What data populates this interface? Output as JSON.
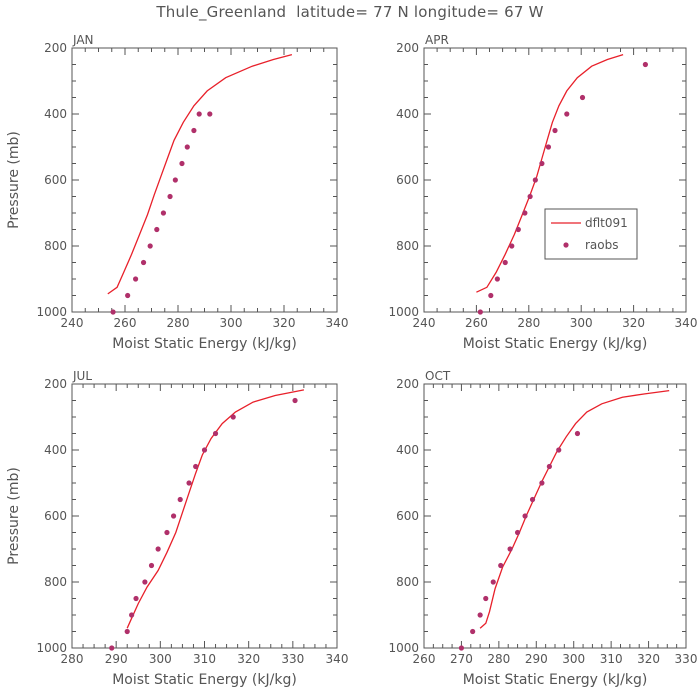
{
  "title": "Thule_Greenland  latitude= 77 N longitude= 67 W",
  "colors": {
    "model": "#e8202a",
    "obs": "#b0306a",
    "axis": "#555555"
  },
  "legend": {
    "model_label": "dflt091",
    "obs_label": "raobs",
    "panel": "APR"
  },
  "chart_data": [
    {
      "type": "scatter+line",
      "panel": "JAN",
      "xlabel": "Moist Static Energy (kJ/kg)",
      "ylabel": "Pressure (mb)",
      "xlim": [
        240,
        340
      ],
      "xticks": [
        240,
        260,
        280,
        300,
        320,
        340
      ],
      "ylim": [
        1000,
        200
      ],
      "yticks": [
        200,
        400,
        600,
        800,
        1000
      ],
      "model": {
        "name": "dflt091",
        "x": [
          253.5,
          257,
          259.5,
          262.5,
          265.5,
          268.5,
          271,
          273.5,
          276,
          278.5,
          282,
          286,
          291,
          298,
          308,
          316,
          323
        ],
        "y": [
          945,
          925,
          880,
          825,
          765,
          705,
          645,
          590,
          535,
          480,
          425,
          375,
          330,
          290,
          255,
          235,
          220
        ]
      },
      "obs": {
        "name": "raobs",
        "x": [
          255.5,
          261,
          264,
          267,
          269.5,
          272,
          274.5,
          277,
          279,
          281.5,
          283.5,
          286,
          288,
          292
        ],
        "y": [
          1000,
          950,
          900,
          850,
          800,
          750,
          700,
          650,
          600,
          550,
          500,
          450,
          400,
          400
        ]
      }
    },
    {
      "type": "scatter+line",
      "panel": "APR",
      "xlabel": "Moist Static Energy (kJ/kg)",
      "ylabel": "",
      "xlim": [
        240,
        340
      ],
      "xticks": [
        240,
        260,
        280,
        300,
        320,
        340
      ],
      "ylim": [
        1000,
        200
      ],
      "yticks": [
        200,
        400,
        600,
        800,
        1000
      ],
      "model": {
        "name": "dflt091",
        "x": [
          260,
          264,
          267.5,
          271,
          274.5,
          277.5,
          280.5,
          283,
          285,
          287,
          289,
          291.5,
          294.5,
          298.5,
          304,
          310,
          316
        ],
        "y": [
          940,
          925,
          880,
          825,
          765,
          705,
          645,
          590,
          535,
          480,
          425,
          375,
          330,
          290,
          255,
          235,
          220
        ]
      },
      "obs": {
        "name": "raobs",
        "x": [
          261.5,
          265.5,
          268,
          271,
          273.5,
          276,
          278.5,
          280.5,
          282.5,
          285,
          287.5,
          290,
          294.5,
          300.5,
          324.5
        ],
        "y": [
          1000,
          950,
          900,
          850,
          800,
          750,
          700,
          650,
          600,
          550,
          500,
          450,
          400,
          350,
          250
        ]
      }
    },
    {
      "type": "scatter+line",
      "panel": "JUL",
      "xlabel": "Moist Static Energy (kJ/kg)",
      "ylabel": "Pressure (mb)",
      "xlim": [
        280,
        340
      ],
      "xticks": [
        280,
        290,
        300,
        310,
        320,
        330,
        340
      ],
      "ylim": [
        1000,
        200
      ],
      "yticks": [
        200,
        400,
        600,
        800,
        1000
      ],
      "model": {
        "name": "dflt091",
        "x": [
          292.5,
          293.5,
          295,
          297,
          299.5,
          301.5,
          303.5,
          305,
          306.5,
          308,
          309.5,
          311.5,
          314,
          317,
          321,
          326,
          332.5
        ],
        "y": [
          940,
          910,
          865,
          815,
          765,
          710,
          650,
          590,
          530,
          470,
          415,
          365,
          320,
          285,
          255,
          235,
          218
        ]
      },
      "obs": {
        "name": "raobs",
        "x": [
          289,
          292.5,
          293.5,
          294.5,
          296.5,
          298,
          299.5,
          301.5,
          303,
          304.5,
          306.5,
          308,
          310,
          312.5,
          316.5,
          330.5
        ],
        "y": [
          1000,
          950,
          900,
          850,
          800,
          750,
          700,
          650,
          600,
          550,
          500,
          450,
          400,
          350,
          300,
          250
        ]
      }
    },
    {
      "type": "scatter+line",
      "panel": "OCT",
      "xlabel": "Moist Static Energy (kJ/kg)",
      "ylabel": "",
      "xlim": [
        260,
        330
      ],
      "xticks": [
        260,
        270,
        280,
        290,
        300,
        310,
        320,
        330
      ],
      "ylim": [
        1000,
        200
      ],
      "yticks": [
        200,
        400,
        600,
        800,
        1000
      ],
      "model": {
        "name": "dflt091",
        "x": [
          275,
          276.5,
          277.5,
          279,
          281,
          283.5,
          285.5,
          287.5,
          289.5,
          291.5,
          293.5,
          295.5,
          298,
          300.5,
          303.5,
          307.5,
          313,
          319,
          325.5
        ],
        "y": [
          940,
          925,
          890,
          820,
          755,
          700,
          650,
          595,
          545,
          495,
          450,
          405,
          360,
          320,
          285,
          260,
          240,
          230,
          220
        ]
      },
      "obs": {
        "name": "raobs",
        "x": [
          270,
          273,
          275,
          276.5,
          278.5,
          280.5,
          283,
          285,
          287,
          289,
          291.5,
          293.5,
          296,
          301
        ],
        "y": [
          1000,
          950,
          900,
          850,
          800,
          750,
          700,
          650,
          600,
          550,
          500,
          450,
          400,
          350
        ]
      }
    }
  ]
}
